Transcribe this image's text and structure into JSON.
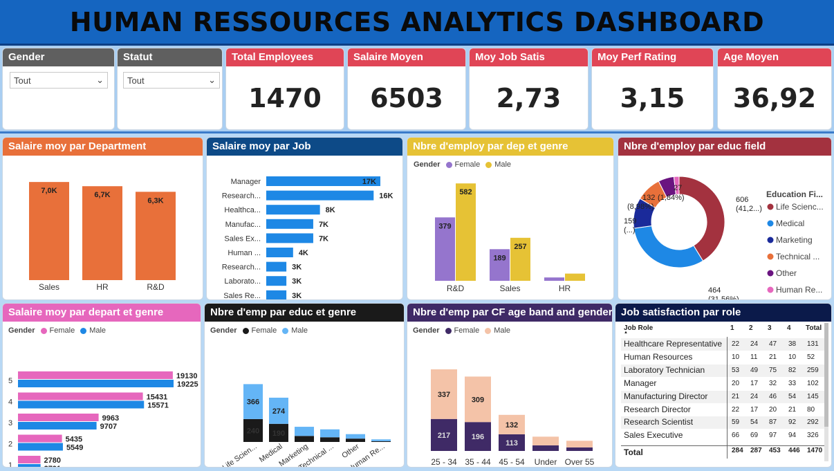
{
  "title": "HUMAN RESSOURCES ANALYTICS DASHBOARD",
  "slicers": [
    {
      "label": "Gender",
      "value": "Tout"
    },
    {
      "label": "Statut",
      "value": "Tout"
    }
  ],
  "kpis": [
    {
      "label": "Total Employees",
      "value": "1470"
    },
    {
      "label": "Salaire Moyen",
      "value": "6503"
    },
    {
      "label": "Moy Job Satis",
      "value": "2,73"
    },
    {
      "label": "Moy Perf Rating",
      "value": "3,15"
    },
    {
      "label": "Age Moyen",
      "value": "36,92"
    }
  ],
  "colors": {
    "header_bg": "#1565c0",
    "kpi_title": "#e04556",
    "dept": "#e8703a",
    "job": "#1e88e5",
    "female_y": "#9575cd",
    "male_y": "#e6c235",
    "pink": "#e667bd",
    "blue": "#1e88e5",
    "black": "#1a1a1a",
    "lightblue": "#64b5f6",
    "navy": "#3f2a66",
    "peach": "#f4c3a8"
  },
  "legend": {
    "gender": "Gender",
    "female": "Female",
    "male": "Male",
    "educ_title": "Education Fi..."
  },
  "chart_data": [
    {
      "title": "Salaire moy par Department",
      "type": "bar",
      "categories": [
        "Sales",
        "HR",
        "R&D"
      ],
      "values": [
        7000,
        6700,
        6300
      ],
      "labels": [
        "7,0K",
        "6,7K",
        "6,3K"
      ]
    },
    {
      "title": "Salaire moy par Job",
      "type": "bar",
      "categories": [
        "Manager",
        "Research...",
        "Healthca...",
        "Manufac...",
        "Sales Ex...",
        "Human ...",
        "Research...",
        "Laborato...",
        "Sales Re..."
      ],
      "values": [
        17000,
        16000,
        8000,
        7000,
        7000,
        4000,
        3000,
        3000,
        3000
      ],
      "labels": [
        "17K",
        "16K",
        "8K",
        "7K",
        "7K",
        "4K",
        "3K",
        "3K",
        "3K"
      ]
    },
    {
      "title": "Nbre d'employ par dep et genre",
      "type": "bar",
      "categories": [
        "R&D",
        "Sales",
        "HR"
      ],
      "series": [
        {
          "name": "Female",
          "values": [
            379,
            189,
            20
          ]
        },
        {
          "name": "Male",
          "values": [
            582,
            257,
            43
          ]
        }
      ],
      "labels": {
        "Female": [
          "379",
          "189",
          ""
        ],
        "Male": [
          "582",
          "257",
          ""
        ]
      }
    },
    {
      "title": "Nbre d'employ par educ field",
      "type": "pie",
      "categories": [
        "Life Scienc...",
        "Medical",
        "Marketing",
        "Technical ...",
        "Other",
        "Human Re..."
      ],
      "values": [
        606,
        464,
        159,
        132,
        82,
        27
      ],
      "labels": [
        "606 (41,2...)",
        "464 (31,56%)",
        "159 (...)",
        "132 (8,98%)",
        "",
        "27 (1,84%)"
      ]
    },
    {
      "title": "Salaire moy par depart et genre",
      "type": "bar",
      "categories": [
        "5",
        "4",
        "3",
        "2",
        "1"
      ],
      "series": [
        {
          "name": "Female",
          "values": [
            19130,
            15431,
            9963,
            5435,
            2780
          ]
        },
        {
          "name": "Male",
          "values": [
            19225,
            15571,
            9707,
            5549,
            2791
          ]
        }
      ]
    },
    {
      "title": "Nbre d'emp par educ et genre",
      "type": "bar",
      "categories": [
        "Life Scien...",
        "Medical",
        "Marketing",
        "Technical ...",
        "Other",
        "Human Re..."
      ],
      "series": [
        {
          "name": "Female",
          "values": [
            240,
            190,
            63,
            49,
            35,
            8
          ]
        },
        {
          "name": "Male",
          "values": [
            366,
            274,
            96,
            83,
            47,
            19
          ]
        }
      ],
      "labels": {
        "Female": [
          "240",
          "190",
          "",
          "",
          "",
          ""
        ],
        "Male": [
          "366",
          "274",
          "",
          "",
          "",
          ""
        ]
      }
    },
    {
      "title": "Nbre d'emp par CF age band and gender",
      "type": "bar",
      "categories": [
        "25 - 34",
        "35 - 44",
        "45 - 54",
        "Under 25",
        "Over 55"
      ],
      "series": [
        {
          "name": "Female",
          "values": [
            217,
            196,
            113,
            38,
            24
          ]
        },
        {
          "name": "Male",
          "values": [
            337,
            309,
            132,
            59,
            45
          ]
        }
      ],
      "labels": {
        "Female": [
          "217",
          "196",
          "113",
          "",
          ""
        ],
        "Male": [
          "337",
          "309",
          "132",
          "",
          ""
        ]
      }
    },
    {
      "title": "Job satisfaction par role",
      "type": "table",
      "columns": [
        "Job Role",
        "1",
        "2",
        "3",
        "4",
        "Total"
      ],
      "rows": [
        [
          "Healthcare Representative",
          "22",
          "24",
          "47",
          "38",
          "131"
        ],
        [
          "Human Resources",
          "10",
          "11",
          "21",
          "10",
          "52"
        ],
        [
          "Laboratory Technician",
          "53",
          "49",
          "75",
          "82",
          "259"
        ],
        [
          "Manager",
          "20",
          "17",
          "32",
          "33",
          "102"
        ],
        [
          "Manufacturing Director",
          "21",
          "24",
          "46",
          "54",
          "145"
        ],
        [
          "Research Director",
          "22",
          "17",
          "20",
          "21",
          "80"
        ],
        [
          "Research Scientist",
          "59",
          "54",
          "87",
          "92",
          "292"
        ],
        [
          "Sales Executive",
          "66",
          "69",
          "97",
          "94",
          "326"
        ]
      ],
      "total": [
        "Total",
        "284",
        "287",
        "453",
        "446",
        "1470"
      ]
    }
  ]
}
